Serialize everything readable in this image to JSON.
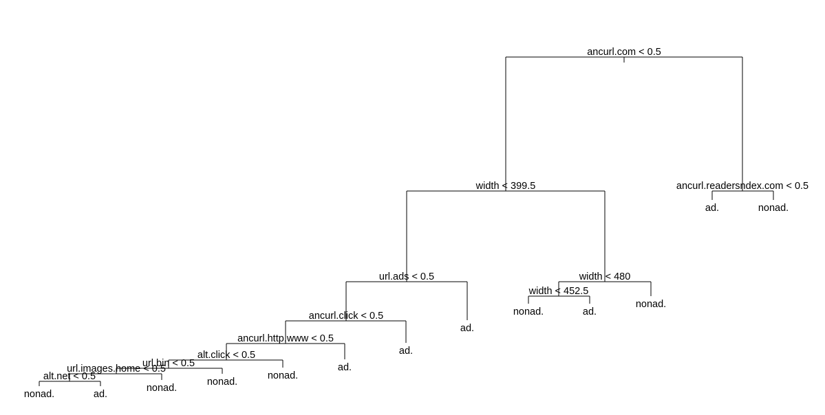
{
  "chart_data": {
    "type": "tree",
    "root": {
      "split": "ancurl.com < 0.5",
      "left": {
        "split": "width < 399.5",
        "left": {
          "split": "url.ads < 0.5",
          "left": {
            "split": "ancurl.click < 0.5",
            "left": {
              "split": "ancurl.http.www < 0.5",
              "left": {
                "split": "alt.click < 0.5",
                "left": {
                  "split": "url.bin < 0.5",
                  "left": {
                    "split": "url.images.home < 0.5",
                    "left": {
                      "split": "alt.net < 0.5",
                      "left": {
                        "leaf": "nonad."
                      },
                      "right": {
                        "leaf": "ad."
                      }
                    },
                    "right": {
                      "leaf": "nonad."
                    }
                  },
                  "right": {
                    "leaf": "nonad."
                  }
                },
                "right": {
                  "leaf": "nonad."
                }
              },
              "right": {
                "leaf": "ad."
              }
            },
            "right": {
              "leaf": "ad."
            }
          },
          "right": {
            "leaf": "ad."
          }
        },
        "right": {
          "split": "width < 480",
          "left": {
            "split": "width < 452.5",
            "left": {
              "leaf": "nonad."
            },
            "right": {
              "leaf": "ad."
            }
          },
          "right": {
            "leaf": "nonad."
          }
        }
      },
      "right": {
        "split": "ancurl.readersndex.com < 0.5",
        "left": {
          "leaf": "ad."
        },
        "right": {
          "leaf": "nonad."
        }
      }
    }
  },
  "colors": {
    "line": "#000000",
    "text": "#000000",
    "background": "#ffffff"
  }
}
